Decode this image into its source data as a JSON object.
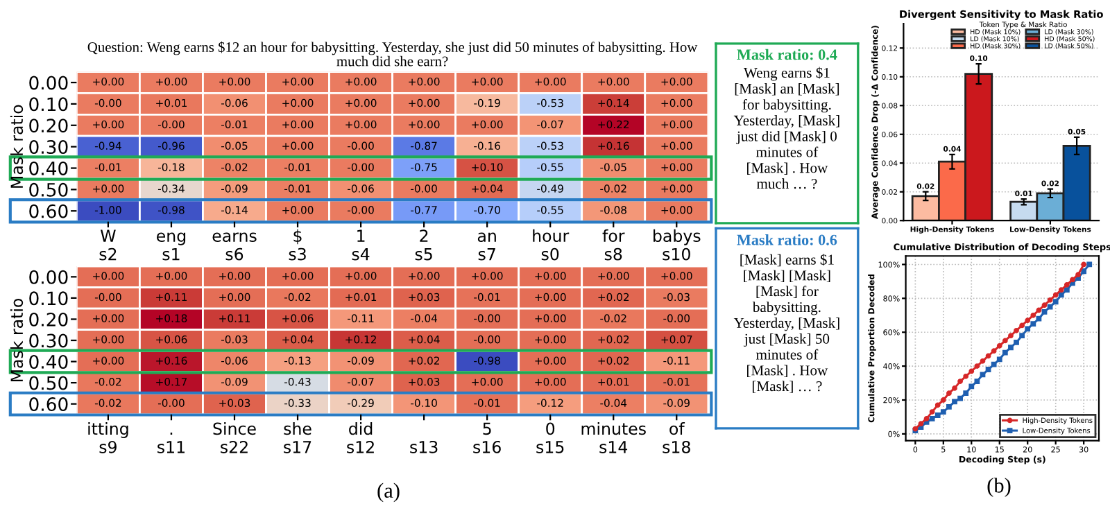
{
  "chart_data": [
    {
      "type": "heatmap",
      "title": "Question: Weng earns $12 an hour for babysitting. Yesterday, she just did 50 minutes of babysitting. How\nmuch did she earn?",
      "ylabel": "Mask ratio",
      "categories": [
        "W\ns2",
        "eng\ns1",
        "earns\ns6",
        "$\ns3",
        "1\ns4",
        "2\ns5",
        "an\ns7",
        "hour\ns0",
        "for\ns8",
        "babys\ns10"
      ],
      "y_categories": [
        "0.00",
        "0.10",
        "0.20",
        "0.30",
        "0.40",
        "0.50",
        "0.60"
      ],
      "cells": [
        [
          0,
          0,
          0,
          0,
          0,
          0,
          0,
          0,
          0,
          0
        ],
        [
          0,
          0.01,
          -0.06,
          0,
          0,
          0,
          -0.19,
          -0.53,
          0.14,
          0
        ],
        [
          0,
          0,
          -0.01,
          0,
          0,
          0,
          0,
          -0.07,
          0.22,
          0
        ],
        [
          -0.94,
          -0.96,
          -0.05,
          0,
          0,
          -0.87,
          -0.16,
          -0.53,
          0.16,
          0
        ],
        [
          -0.01,
          -0.18,
          -0.02,
          -0.01,
          0,
          -0.75,
          0.1,
          -0.55,
          -0.05,
          0
        ],
        [
          0,
          -0.34,
          -0.09,
          -0.01,
          -0.06,
          0,
          0.04,
          -0.49,
          -0.02,
          0
        ],
        [
          -1.0,
          -0.98,
          -0.14,
          0,
          0,
          -0.77,
          -0.7,
          -0.55,
          -0.08,
          0
        ]
      ],
      "cell_labels": [
        [
          "+0.00",
          "+0.00",
          "+0.00",
          "+0.00",
          "+0.00",
          "+0.00",
          "+0.00",
          "+0.00",
          "+0.00",
          "+0.00"
        ],
        [
          "-0.00",
          "+0.01",
          "-0.06",
          "+0.00",
          "+0.00",
          "+0.00",
          "-0.19",
          "-0.53",
          "+0.14",
          "+0.00"
        ],
        [
          "+0.00",
          "-0.00",
          "-0.01",
          "+0.00",
          "+0.00",
          "+0.00",
          "+0.00",
          "-0.07",
          "+0.22",
          "+0.00"
        ],
        [
          "-0.94",
          "-0.96",
          "-0.05",
          "+0.00",
          "-0.00",
          "-0.87",
          "-0.16",
          "-0.53",
          "+0.16",
          "+0.00"
        ],
        [
          "-0.01",
          "-0.18",
          "-0.02",
          "-0.01",
          "-0.00",
          "-0.75",
          "+0.10",
          "-0.55",
          "-0.05",
          "+0.00"
        ],
        [
          "+0.00",
          "-0.34",
          "-0.09",
          "-0.01",
          "-0.06",
          "-0.00",
          "+0.04",
          "-0.49",
          "-0.02",
          "+0.00"
        ],
        [
          "-1.00",
          "-0.98",
          "-0.14",
          "+0.00",
          "-0.00",
          "-0.77",
          "-0.70",
          "-0.55",
          "-0.08",
          "+0.00"
        ]
      ]
    },
    {
      "type": "heatmap",
      "ylabel": "Mask ratio",
      "annotations": [
        "(a)"
      ],
      "categories": [
        "itting\ns9",
        ".\ns11",
        "Since\ns22",
        "she\ns17",
        "did\ns12",
        "\ns13",
        "5\ns16",
        "0\ns15",
        "minutes\ns14",
        "of\ns18"
      ],
      "y_categories": [
        "0.00",
        "0.10",
        "0.20",
        "0.30",
        "0.40",
        "0.50",
        "0.60"
      ],
      "cells": [
        [
          0,
          0,
          0,
          0,
          0,
          0,
          0,
          0,
          0,
          0
        ],
        [
          0,
          0.11,
          0,
          -0.02,
          0.01,
          0.03,
          -0.01,
          0,
          0.02,
          -0.03
        ],
        [
          0,
          0.18,
          0.11,
          0.06,
          -0.11,
          -0.04,
          0,
          0,
          -0.02,
          0
        ],
        [
          0,
          0.06,
          -0.03,
          0.04,
          0.12,
          0.04,
          0,
          0,
          0.02,
          0.07
        ],
        [
          0,
          0.16,
          -0.06,
          -0.13,
          -0.09,
          0.02,
          -0.98,
          0,
          0.02,
          -0.11
        ],
        [
          -0.02,
          0.17,
          -0.09,
          -0.43,
          -0.07,
          0.03,
          0,
          0,
          0.01,
          -0.01
        ],
        [
          -0.02,
          0,
          0.03,
          -0.33,
          -0.29,
          -0.1,
          -0.01,
          -0.12,
          -0.04,
          -0.09
        ]
      ],
      "cell_labels": [
        [
          "+0.00",
          "+0.00",
          "+0.00",
          "+0.00",
          "+0.00",
          "+0.00",
          "+0.00",
          "+0.00",
          "+0.00",
          "+0.00"
        ],
        [
          "-0.00",
          "+0.11",
          "+0.00",
          "-0.02",
          "+0.01",
          "+0.03",
          "-0.01",
          "+0.00",
          "+0.02",
          "-0.03"
        ],
        [
          "+0.00",
          "+0.18",
          "+0.11",
          "+0.06",
          "-0.11",
          "-0.04",
          "-0.00",
          "+0.00",
          "-0.02",
          "-0.00"
        ],
        [
          "+0.00",
          "+0.06",
          "-0.03",
          "+0.04",
          "+0.12",
          "+0.04",
          "-0.00",
          "+0.00",
          "+0.02",
          "+0.07"
        ],
        [
          "+0.00",
          "+0.16",
          "-0.06",
          "-0.13",
          "-0.09",
          "+0.02",
          "-0.98",
          "+0.00",
          "+0.02",
          "-0.11"
        ],
        [
          "-0.02",
          "+0.17",
          "-0.09",
          "-0.43",
          "-0.07",
          "+0.03",
          "+0.00",
          "+0.00",
          "+0.01",
          "-0.01"
        ],
        [
          "-0.02",
          "-0.00",
          "+0.03",
          "-0.33",
          "-0.29",
          "-0.10",
          "-0.01",
          "-0.12",
          "-0.04",
          "-0.09"
        ]
      ]
    },
    {
      "type": "other",
      "title": "Mask ratio: 0.4",
      "color": "#1faa55",
      "annotations": [
        "Weng earns $1\n[Mask] an [Mask]\nfor babysitting.\nYesterday, [Mask]\njust did [Mask] 0\nminutes of\n[Mask] . How\nmuch … ?"
      ]
    },
    {
      "type": "other",
      "title": "Mask ratio: 0.6",
      "color": "#2a7cc4",
      "annotations": [
        "[Mask] earns $1\n[Mask] [Mask]\n[Mask] for\nbabysitting.\nYesterday, [Mask]\njust [Mask] 50\nminutes of\n[Mask] . How\n[Mask] … ?"
      ]
    },
    {
      "type": "bar",
      "title": "Divergent Sensitivity to Mask Ratio",
      "ylabel": "Average Confidence Drop (-Δ Confidence)",
      "legend_title": "Token Type & Mask Ratio",
      "legend": "top right",
      "grid": "y",
      "categories": [
        "High-Density Tokens",
        "Low-Density Tokens"
      ],
      "series": [
        {
          "name": "HD (Mask 10%)",
          "color": "#fcbba1",
          "values": [
            0.017,
            null
          ],
          "errors": [
            0.003,
            null
          ],
          "value_labels": [
            "0.02",
            null
          ]
        },
        {
          "name": "LD (Mask 10%)",
          "color": "#c6dbef",
          "values": [
            null,
            0.013
          ],
          "errors": [
            null,
            0.002
          ],
          "value_labels": [
            null,
            "0.01"
          ]
        },
        {
          "name": "HD (Mask 30%)",
          "color": "#fb6a4a",
          "values": [
            0.041,
            null
          ],
          "errors": [
            0.005,
            null
          ],
          "value_labels": [
            "0.04",
            null
          ]
        },
        {
          "name": "LD (Mask 30%)",
          "color": "#6baed6",
          "values": [
            null,
            0.019
          ],
          "errors": [
            null,
            0.003
          ],
          "value_labels": [
            null,
            "0.02"
          ]
        },
        {
          "name": "HD (Mask 50%)",
          "color": "#cb181d",
          "values": [
            0.102,
            null
          ],
          "errors": [
            0.007,
            null
          ],
          "value_labels": [
            "0.10",
            null
          ]
        },
        {
          "name": "LD (Mask 50%)",
          "color": "#08519c",
          "values": [
            null,
            0.052
          ],
          "errors": [
            null,
            0.006
          ],
          "value_labels": [
            null,
            "0.05"
          ]
        }
      ],
      "ylim": [
        0,
        0.137
      ],
      "yticks": [
        {
          "value": 0,
          "label": "0.00"
        },
        {
          "value": 0.02,
          "label": "0.02"
        },
        {
          "value": 0.04,
          "label": "0.04"
        },
        {
          "value": 0.06,
          "label": "0.06"
        },
        {
          "value": 0.08,
          "label": "0.08"
        },
        {
          "value": 0.1,
          "label": "0.10"
        },
        {
          "value": 0.12,
          "label": "0.12"
        }
      ]
    },
    {
      "type": "line",
      "title": "Cumulative Distribution of Decoding Steps",
      "xlabel": "Decoding Step (s)",
      "ylabel": "Cumulative Proportion Decoded",
      "legend": "bottom right",
      "grid": true,
      "annotations": [
        "(b)"
      ],
      "series": [
        {
          "name": "High-Density Tokens",
          "color": "#d62728",
          "marker": "circle",
          "x": [
            0,
            1,
            2,
            3,
            4,
            5,
            6,
            7,
            8,
            9,
            10,
            11,
            12,
            13,
            14,
            15,
            16,
            17,
            18,
            19,
            20,
            21,
            22,
            23,
            24,
            25,
            26,
            27,
            28,
            29,
            30
          ],
          "values": [
            3,
            6,
            9,
            13,
            17,
            20,
            24,
            27,
            31,
            34,
            37,
            40,
            43,
            46,
            49,
            52,
            55,
            58,
            61,
            64,
            67,
            70,
            73,
            76,
            79,
            82,
            85,
            88,
            91,
            94,
            100
          ]
        },
        {
          "name": "Low-Density Tokens",
          "color": "#1f5fb0",
          "marker": "square",
          "x": [
            0,
            1,
            2,
            3,
            4,
            5,
            6,
            7,
            8,
            9,
            10,
            11,
            12,
            13,
            14,
            15,
            16,
            17,
            18,
            19,
            20,
            21,
            22,
            23,
            24,
            25,
            26,
            27,
            28,
            29,
            30,
            31
          ],
          "values": [
            2,
            4,
            7,
            9,
            11,
            13,
            16,
            19,
            21,
            24,
            28,
            31,
            35,
            38,
            41,
            44,
            48,
            51,
            54,
            58,
            62,
            65,
            68,
            72,
            75,
            78,
            82,
            85,
            89,
            92,
            96,
            100
          ]
        }
      ],
      "xlim": [
        -1.7,
        32.7
      ],
      "xticks": [
        0,
        5,
        10,
        15,
        20,
        25,
        30
      ],
      "ylim": [
        -4,
        105
      ],
      "yticks": [
        {
          "value": 0,
          "label": "0%"
        },
        {
          "value": 20,
          "label": "20%"
        },
        {
          "value": 40,
          "label": "40%"
        },
        {
          "value": 60,
          "label": "60%"
        },
        {
          "value": 80,
          "label": "80%"
        },
        {
          "value": 100,
          "label": "100%"
        }
      ]
    }
  ]
}
